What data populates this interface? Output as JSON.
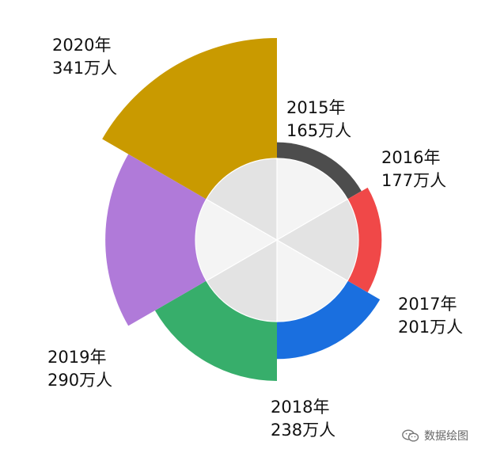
{
  "chart_data": {
    "type": "pie",
    "subtype": "rose-with-inner-ring",
    "categories": [
      "2015年",
      "2016年",
      "2017年",
      "2018年",
      "2019年",
      "2020年"
    ],
    "values": [
      165,
      177,
      201,
      238,
      290,
      341
    ],
    "value_labels": [
      "165万人",
      "177万人",
      "201万人",
      "238万人",
      "290万人",
      "341万人"
    ],
    "colors": [
      "#4d4d4d",
      "#f04848",
      "#1a6fdf",
      "#37ae6b",
      "#b07ad9",
      "#c99a00"
    ],
    "inner_colors": [
      "#f4f4f4",
      "#e3e3e3"
    ],
    "legend": "none"
  },
  "watermark": {
    "text": "数据绘图",
    "icon": "wechat-icon"
  }
}
